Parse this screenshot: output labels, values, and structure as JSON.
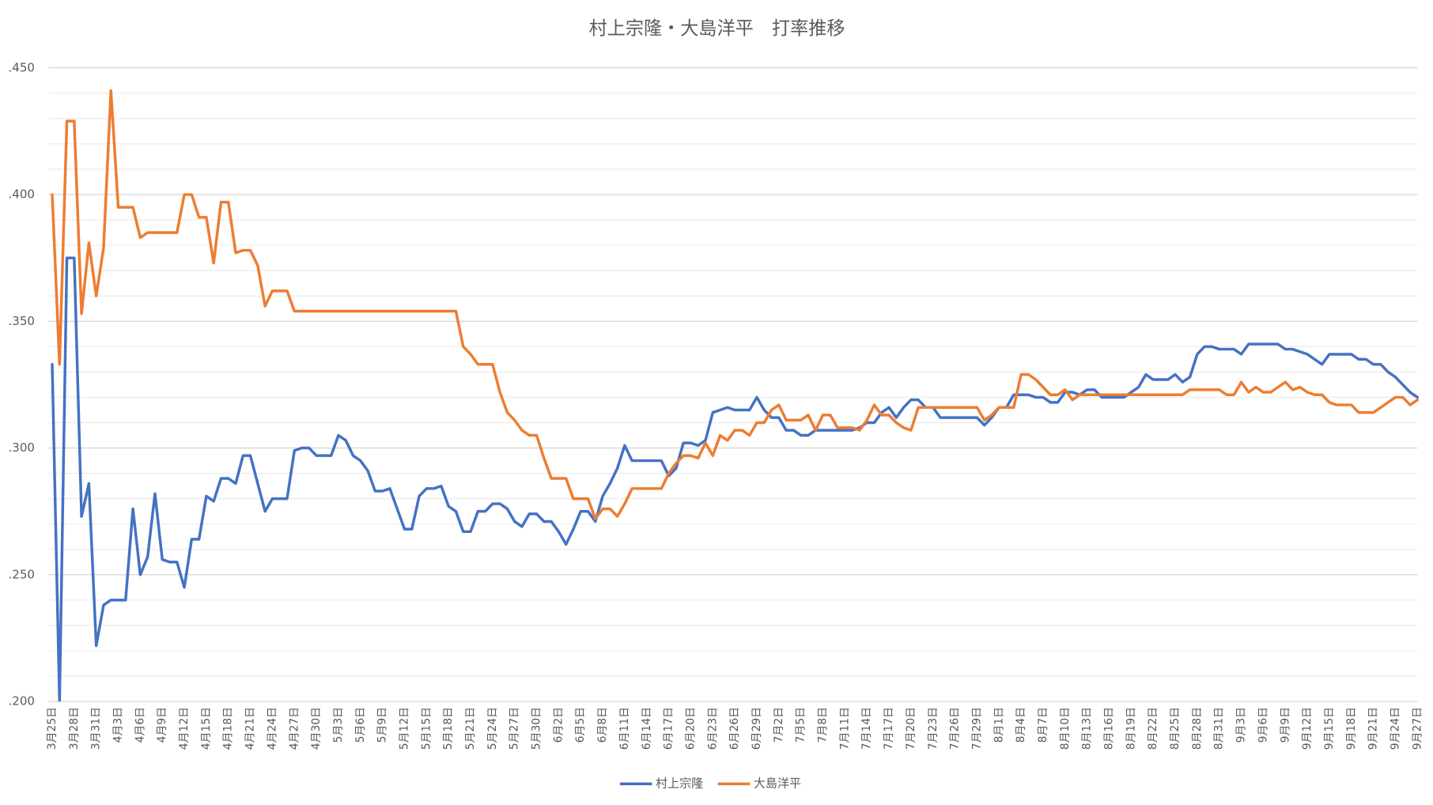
{
  "chart_data": {
    "type": "line",
    "title": "村上宗隆・大島洋平　打率推移",
    "categories": [
      "3月25日",
      null,
      null,
      "3月28日",
      null,
      null,
      "3月31日",
      null,
      null,
      "4月3日",
      null,
      null,
      "4月6日",
      null,
      null,
      "4月9日",
      null,
      null,
      "4月12日",
      null,
      null,
      "4月15日",
      null,
      null,
      "4月18日",
      null,
      null,
      "4月21日",
      null,
      null,
      "4月24日",
      null,
      null,
      "4月27日",
      null,
      null,
      "4月30日",
      null,
      null,
      "5月3日",
      null,
      null,
      "5月6日",
      null,
      null,
      "5月9日",
      null,
      null,
      "5月12日",
      null,
      null,
      "5月15日",
      null,
      null,
      "5月18日",
      null,
      null,
      "5月21日",
      null,
      null,
      "5月24日",
      null,
      null,
      "5月27日",
      null,
      null,
      "5月30日",
      null,
      null,
      "6月2日",
      null,
      null,
      "6月5日",
      null,
      null,
      "6月8日",
      null,
      null,
      "6月11日",
      null,
      null,
      "6月14日",
      null,
      null,
      "6月17日",
      null,
      null,
      "6月20日",
      null,
      null,
      "6月23日",
      null,
      null,
      "6月26日",
      null,
      null,
      "6月29日",
      null,
      null,
      "7月2日",
      null,
      null,
      "7月5日",
      null,
      null,
      "7月8日",
      null,
      null,
      "7月11日",
      null,
      null,
      "7月14日",
      null,
      null,
      "7月17日",
      null,
      null,
      "7月20日",
      null,
      null,
      "7月23日",
      null,
      null,
      "7月26日",
      null,
      null,
      "7月29日",
      null,
      null,
      "8月1日",
      null,
      null,
      "8月4日",
      null,
      null,
      "8月7日",
      null,
      null,
      "8月10日",
      null,
      null,
      "8月13日",
      null,
      null,
      "8月16日",
      null,
      null,
      "8月19日",
      null,
      null,
      "8月22日",
      null,
      null,
      "8月25日",
      null,
      null,
      "8月28日",
      null,
      null,
      "8月31日",
      null,
      null,
      "9月3日",
      null,
      null,
      "9月6日",
      null,
      null,
      "9月9日",
      null,
      null,
      "9月12日",
      null,
      null,
      "9月15日",
      null,
      null,
      "9月18日",
      null,
      null,
      "9月21日",
      null,
      null,
      "9月24日",
      null,
      null,
      "9月27日"
    ],
    "series": [
      {
        "name": "村上宗隆",
        "color": "#4472c4",
        "values": [
          0.333,
          0.2,
          0.375,
          0.375,
          0.273,
          0.286,
          0.222,
          0.238,
          0.24,
          0.24,
          0.24,
          0.276,
          0.25,
          0.257,
          0.282,
          0.256,
          0.255,
          0.255,
          0.245,
          0.264,
          0.264,
          0.281,
          0.279,
          0.288,
          0.288,
          0.286,
          0.297,
          0.297,
          0.286,
          0.275,
          0.28,
          0.28,
          0.28,
          0.299,
          0.3,
          0.3,
          0.297,
          0.297,
          0.297,
          0.305,
          0.303,
          0.297,
          0.295,
          0.291,
          0.283,
          0.283,
          0.284,
          0.276,
          0.268,
          0.268,
          0.281,
          0.284,
          0.284,
          0.285,
          0.277,
          0.275,
          0.267,
          0.267,
          0.275,
          0.275,
          0.278,
          0.278,
          0.276,
          0.271,
          0.269,
          0.274,
          0.274,
          0.271,
          0.271,
          0.267,
          0.262,
          0.268,
          0.275,
          0.275,
          0.271,
          0.281,
          0.286,
          0.292,
          0.301,
          0.295,
          0.295,
          0.295,
          0.295,
          0.295,
          0.289,
          0.292,
          0.302,
          0.302,
          0.301,
          0.303,
          0.314,
          0.315,
          0.316,
          0.315,
          0.315,
          0.315,
          0.32,
          0.315,
          0.312,
          0.312,
          0.307,
          0.307,
          0.305,
          0.305,
          0.307,
          0.307,
          0.307,
          0.307,
          0.307,
          0.307,
          0.308,
          0.31,
          0.31,
          0.314,
          0.316,
          0.312,
          0.316,
          0.319,
          0.319,
          0.316,
          0.316,
          0.312,
          0.312,
          0.312,
          0.312,
          0.312,
          0.312,
          0.309,
          0.312,
          0.316,
          0.316,
          0.321,
          0.321,
          0.321,
          0.32,
          0.32,
          0.318,
          0.318,
          0.322,
          0.322,
          0.321,
          0.323,
          0.323,
          0.32,
          0.32,
          0.32,
          0.32,
          0.322,
          0.324,
          0.329,
          0.327,
          0.327,
          0.327,
          0.329,
          0.326,
          0.328,
          0.337,
          0.34,
          0.34,
          0.339,
          0.339,
          0.339,
          0.337,
          0.341,
          0.341,
          0.341,
          0.341,
          0.341,
          0.339,
          0.339,
          0.338,
          0.337,
          0.335,
          0.333,
          0.337,
          0.337,
          0.337,
          0.337,
          0.335,
          0.335,
          0.333,
          0.333,
          0.33,
          0.328,
          0.325,
          0.322,
          0.32
        ]
      },
      {
        "name": "大島洋平",
        "color": "#ed7d31",
        "values": [
          0.4,
          0.333,
          0.429,
          0.429,
          0.353,
          0.381,
          0.36,
          0.379,
          0.441,
          0.395,
          0.395,
          0.395,
          0.383,
          0.385,
          0.385,
          0.385,
          0.385,
          0.385,
          0.4,
          0.4,
          0.391,
          0.391,
          0.373,
          0.397,
          0.397,
          0.377,
          0.378,
          0.378,
          0.372,
          0.356,
          0.362,
          0.362,
          0.362,
          0.354,
          0.354,
          0.354,
          0.354,
          0.354,
          0.354,
          0.354,
          0.354,
          0.354,
          0.354,
          0.354,
          0.354,
          0.354,
          0.354,
          0.354,
          0.354,
          0.354,
          0.354,
          0.354,
          0.354,
          0.354,
          0.354,
          0.354,
          0.34,
          0.337,
          0.333,
          0.333,
          0.333,
          0.322,
          0.314,
          0.311,
          0.307,
          0.305,
          0.305,
          0.296,
          0.288,
          0.288,
          0.288,
          0.28,
          0.28,
          0.28,
          0.272,
          0.276,
          0.276,
          0.273,
          0.278,
          0.284,
          0.284,
          0.284,
          0.284,
          0.284,
          0.29,
          0.294,
          0.297,
          0.297,
          0.296,
          0.302,
          0.297,
          0.305,
          0.303,
          0.307,
          0.307,
          0.305,
          0.31,
          0.31,
          0.315,
          0.317,
          0.311,
          0.311,
          0.311,
          0.313,
          0.307,
          0.313,
          0.313,
          0.308,
          0.308,
          0.308,
          0.307,
          0.311,
          0.317,
          0.313,
          0.313,
          0.31,
          0.308,
          0.307,
          0.316,
          0.316,
          0.316,
          0.316,
          0.316,
          0.316,
          0.316,
          0.316,
          0.316,
          0.311,
          0.313,
          0.316,
          0.316,
          0.316,
          0.329,
          0.329,
          0.327,
          0.324,
          0.321,
          0.321,
          0.323,
          0.319,
          0.321,
          0.321,
          0.321,
          0.321,
          0.321,
          0.321,
          0.321,
          0.321,
          0.321,
          0.321,
          0.321,
          0.321,
          0.321,
          0.321,
          0.321,
          0.323,
          0.323,
          0.323,
          0.323,
          0.323,
          0.321,
          0.321,
          0.326,
          0.322,
          0.324,
          0.322,
          0.322,
          0.324,
          0.326,
          0.323,
          0.324,
          0.322,
          0.321,
          0.321,
          0.318,
          0.317,
          0.317,
          0.317,
          0.314,
          0.314,
          0.314,
          0.316,
          0.318,
          0.32,
          0.32,
          0.317,
          0.319
        ]
      }
    ],
    "ylim": [
      0.2,
      0.45
    ],
    "yticks": [
      {
        "value": 0.2,
        "label": ".200"
      },
      {
        "value": 0.25,
        "label": ".250"
      },
      {
        "value": 0.3,
        "label": ".300"
      },
      {
        "value": 0.35,
        "label": ".350"
      },
      {
        "value": 0.4,
        "label": ".400"
      },
      {
        "value": 0.45,
        "label": ".450"
      }
    ],
    "minor_yticks": [
      0.21,
      0.22,
      0.23,
      0.24,
      0.26,
      0.27,
      0.28,
      0.29,
      0.31,
      0.32,
      0.33,
      0.34,
      0.36,
      0.37,
      0.38,
      0.39,
      0.41,
      0.42,
      0.43,
      0.44
    ],
    "grid": true,
    "legend": "bottom"
  }
}
